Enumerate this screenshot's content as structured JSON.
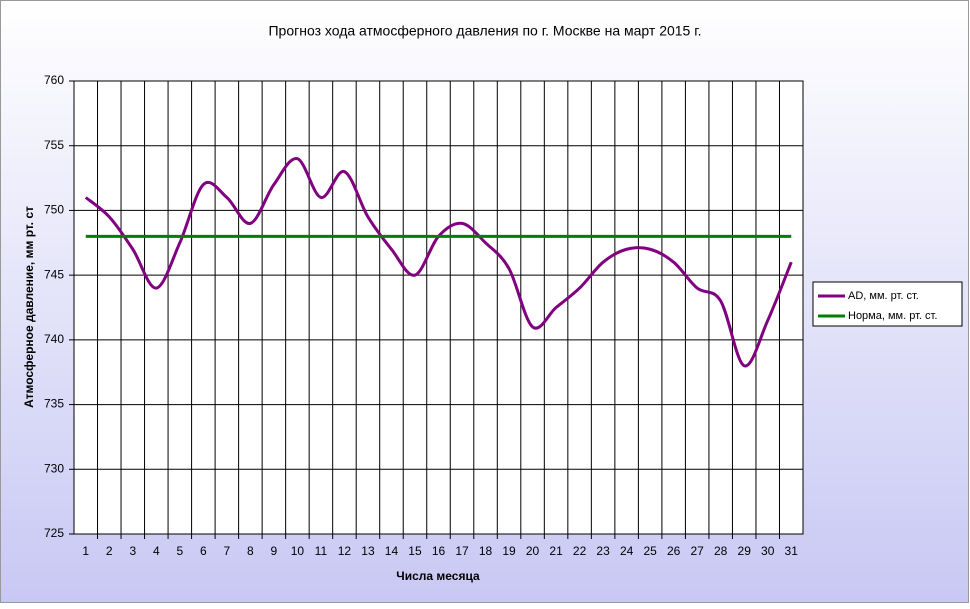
{
  "chart_data": {
    "type": "line",
    "title": "Прогноз хода атмосферного давления по г. Москве на март 2015 г.",
    "y_label": "Атмосферное давление, мм рт. ст",
    "x_label": "Числа месяца",
    "categories": [
      "1",
      "2",
      "3",
      "4",
      "5",
      "6",
      "7",
      "8",
      "9",
      "10",
      "11",
      "12",
      "13",
      "14",
      "15",
      "16",
      "17",
      "18",
      "19",
      "20",
      "21",
      "22",
      "23",
      "24",
      "25",
      "26",
      "27",
      "28",
      "29",
      "30",
      "31"
    ],
    "series": [
      {
        "name": "AD, мм. рт. ст.",
        "color": "#800080",
        "values": [
          751,
          749.5,
          747,
          744,
          747.5,
          752,
          751,
          749,
          752,
          754,
          751,
          753,
          749.5,
          747,
          745,
          748,
          749,
          747.5,
          745.5,
          741,
          742.5,
          744,
          746,
          747,
          747,
          746,
          744,
          743,
          738,
          741.5,
          746
        ]
      },
      {
        "name": "Норма, мм. рт. ст.",
        "color": "#008000",
        "values": [
          748,
          748,
          748,
          748,
          748,
          748,
          748,
          748,
          748,
          748,
          748,
          748,
          748,
          748,
          748,
          748,
          748,
          748,
          748,
          748,
          748,
          748,
          748,
          748,
          748,
          748,
          748,
          748,
          748,
          748,
          748
        ]
      }
    ],
    "ylim": [
      725,
      760
    ],
    "yticks": [
      725,
      730,
      735,
      740,
      745,
      750,
      755,
      760
    ],
    "grid": true,
    "legend": "right"
  }
}
